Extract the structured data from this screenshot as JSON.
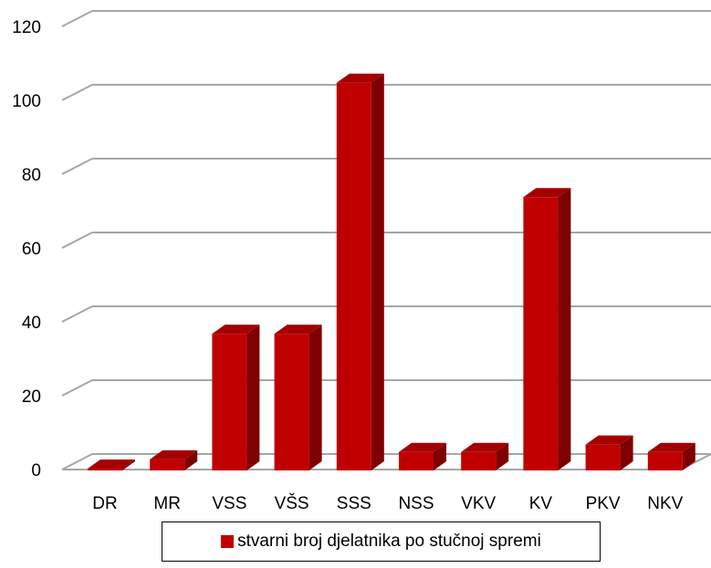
{
  "chart_data": {
    "type": "bar",
    "categories": [
      "DR",
      "MR",
      "VSS",
      "VŠS",
      "SSS",
      "NSS",
      "VKV",
      "KV",
      "PKV",
      "NKV"
    ],
    "series": [
      {
        "name": "stvarni broj djelatnika po stučnoj spremi",
        "values": [
          0,
          3,
          37,
          37,
          105,
          5,
          5,
          74,
          7,
          5
        ]
      }
    ],
    "y_ticks": [
      0,
      20,
      40,
      60,
      80,
      100,
      120
    ],
    "ylim": [
      0,
      120
    ],
    "title": "",
    "xlabel": "",
    "ylabel": "",
    "grid": true,
    "legend_position": "bottom",
    "style": "3d-column",
    "colors": {
      "bar_front": "#c00000",
      "bar_side": "#7f0000",
      "bar_top": "#a50000",
      "grid": "#a6a6a6"
    }
  }
}
